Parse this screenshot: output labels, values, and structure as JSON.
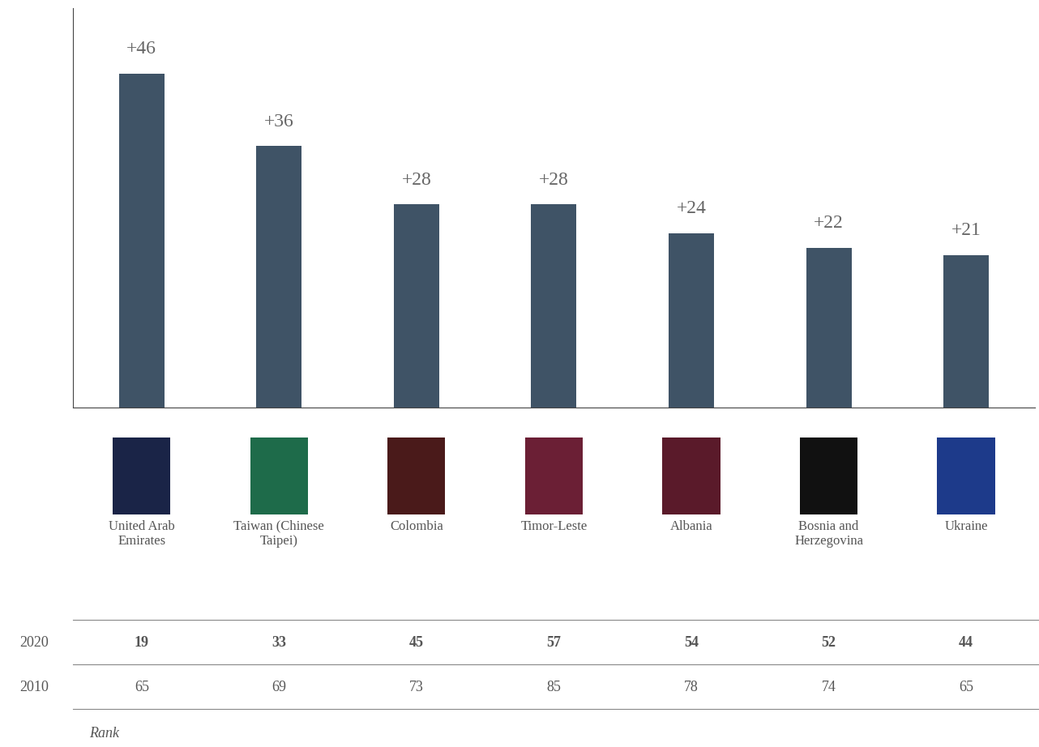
{
  "chart_data": {
    "type": "bar",
    "categories": [
      "United Arab Emirates",
      "Taiwan (Chinese Taipei)",
      "Colombia",
      "Timor-Leste",
      "Albania",
      "Bosnia and Herzegovina",
      "Ukraine"
    ],
    "values": [
      46,
      36,
      28,
      28,
      24,
      22,
      21
    ],
    "value_labels": [
      "+46",
      "+36",
      "+28",
      "+28",
      "+24",
      "+22",
      "+21"
    ],
    "data_labels": true,
    "color": "#3f5366",
    "ylim": [
      0,
      55
    ],
    "yticks": [],
    "tick_labels": "x",
    "grid": false,
    "rank_table": {
      "title": "Rank",
      "rows": [
        {
          "label": "2020",
          "values": [
            19,
            33,
            45,
            57,
            54,
            52,
            44
          ]
        },
        {
          "label": "2010",
          "values": [
            65,
            69,
            73,
            85,
            78,
            74,
            65
          ]
        }
      ]
    }
  }
}
